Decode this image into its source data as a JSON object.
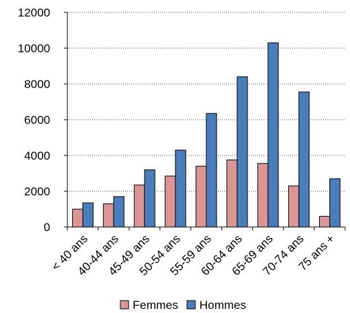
{
  "chart_data": {
    "type": "bar",
    "categories": [
      "< 40 ans",
      "40-44 ans",
      "45-49 ans",
      "50-54 ans",
      "55-59 ans",
      "60-64 ans",
      "65-69 ans",
      "70-74 ans",
      "75 ans +"
    ],
    "series": [
      {
        "name": "Femmes",
        "values": [
          1000,
          1300,
          2350,
          2850,
          3400,
          3750,
          3550,
          2300,
          600
        ],
        "color": "#D99694"
      },
      {
        "name": "Hommes",
        "values": [
          1350,
          1700,
          3200,
          4300,
          6350,
          8400,
          10300,
          7550,
          2700
        ],
        "color": "#4A7EBB"
      }
    ],
    "ylim": [
      0,
      12000
    ],
    "yticks": [
      0,
      2000,
      4000,
      6000,
      8000,
      10000,
      12000
    ],
    "grid": true,
    "legend_position": "bottom"
  }
}
